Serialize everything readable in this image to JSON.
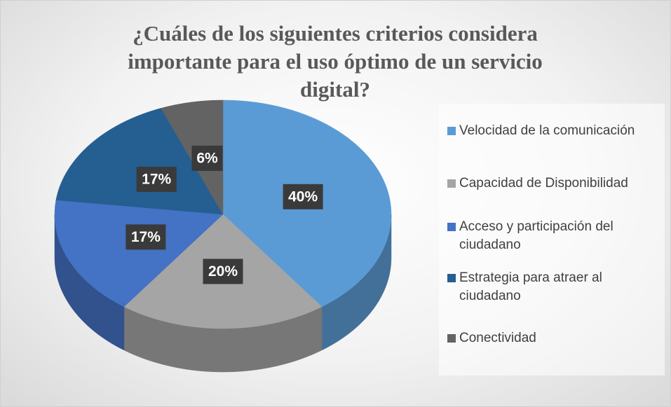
{
  "chart_data": {
    "type": "pie",
    "title": "¿Cuáles de los siguientes criterios considera importante para el uso óptimo de un servicio digital?",
    "categories": [
      "Velocidad de la comunicación",
      "Capacidad de Disponibilidad",
      "Acceso y participación del ciudadano",
      "Estrategia para atraer al ciudadano",
      "Conectividad"
    ],
    "values": [
      40,
      20,
      17,
      17,
      6
    ],
    "value_labels": [
      "40%",
      "20%",
      "17%",
      "17%",
      "6%"
    ],
    "colors": [
      "#5b9bd5",
      "#a5a5a5",
      "#4472c4",
      "#255e91",
      "#636363"
    ],
    "legend": "right"
  }
}
